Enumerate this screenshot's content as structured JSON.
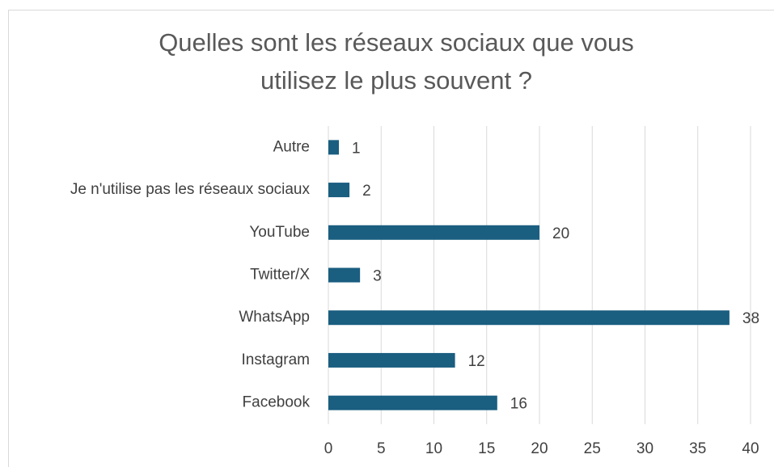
{
  "chart_data": {
    "type": "bar",
    "orientation": "horizontal",
    "title_lines": [
      "Quelles sont les réseaux sociaux que vous",
      "utilisez le plus souvent ?"
    ],
    "categories": [
      "Autre",
      "Je n'utilise pas les réseaux sociaux",
      "YouTube",
      "Twitter/X",
      "WhatsApp",
      "Instagram",
      "Facebook"
    ],
    "values": [
      1,
      2,
      20,
      3,
      38,
      12,
      16
    ],
    "color": "#1a5e80",
    "xlim": [
      0,
      40
    ],
    "xticks": [
      0,
      5,
      10,
      15,
      20,
      25,
      30,
      35,
      40
    ],
    "grid": true
  }
}
